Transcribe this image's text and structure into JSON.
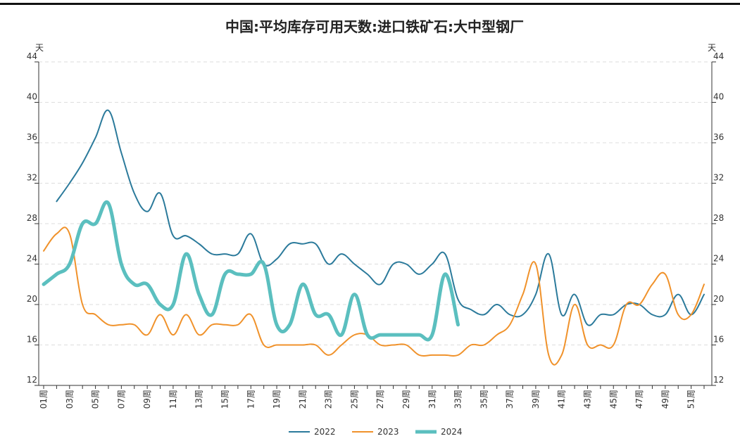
{
  "chart_data": {
    "type": "line",
    "title": "中国:平均库存可用天数:进口铁矿石:大中型钢厂",
    "y_label": "天",
    "categories": [
      "01周",
      null,
      "03周",
      null,
      "05周",
      null,
      "07周",
      null,
      "09周",
      null,
      "11周",
      null,
      "13周",
      null,
      "15周",
      null,
      "17周",
      null,
      "19周",
      null,
      "21周",
      null,
      "23周",
      null,
      "25周",
      null,
      "27周",
      null,
      "29周",
      null,
      "31周",
      null,
      "33周",
      null,
      "35周",
      null,
      "37周",
      null,
      "39周",
      null,
      "41周",
      null,
      "43周",
      null,
      "45周",
      null,
      "47周",
      null,
      "49周",
      null,
      "51周",
      null
    ],
    "series": [
      {
        "name": "2022",
        "color": "#2b7a9b",
        "width": 2,
        "values": [
          null,
          30.2,
          32,
          34,
          36.5,
          39.2,
          35,
          31,
          29.2,
          31,
          26.8,
          26.8,
          26,
          25,
          25,
          25,
          27,
          24,
          24.5,
          26,
          26,
          26,
          24,
          25,
          24,
          23,
          22,
          24,
          24,
          23,
          24,
          25,
          20.5,
          19.5,
          19,
          20,
          19,
          19,
          21,
          25,
          19,
          21,
          18,
          19,
          19,
          20,
          20,
          19,
          19,
          21,
          19,
          21
        ]
      },
      {
        "name": "2023",
        "color": "#f0922b",
        "width": 2,
        "values": [
          25.3,
          27,
          27,
          20,
          19,
          18,
          18,
          18,
          17,
          19,
          17,
          19,
          17,
          18,
          18,
          18,
          19,
          16,
          16,
          16,
          16,
          16,
          15,
          16,
          17,
          17,
          16,
          16,
          16,
          15,
          15,
          15,
          15,
          16,
          16,
          17,
          18,
          21,
          24,
          15,
          15,
          20,
          16,
          16,
          16,
          20,
          20,
          22,
          23,
          19,
          19,
          22
        ]
      },
      {
        "name": "2024",
        "color": "#5bbfbf",
        "width": 5,
        "values": [
          22,
          23,
          24,
          28,
          28,
          30,
          24,
          22,
          22,
          20,
          20,
          25,
          21,
          19,
          23,
          23,
          23,
          24,
          18,
          18,
          22,
          19,
          19,
          17,
          21,
          17,
          17,
          17,
          17,
          17,
          17,
          23,
          18,
          null,
          null,
          null,
          null,
          null,
          null,
          null,
          null,
          null,
          null,
          null,
          null,
          null,
          null,
          null,
          null,
          null,
          null,
          null
        ]
      }
    ],
    "ylim": [
      12,
      44
    ],
    "yticks": [
      12,
      16,
      20,
      24,
      28,
      32,
      36,
      40,
      44
    ],
    "grid": true
  }
}
